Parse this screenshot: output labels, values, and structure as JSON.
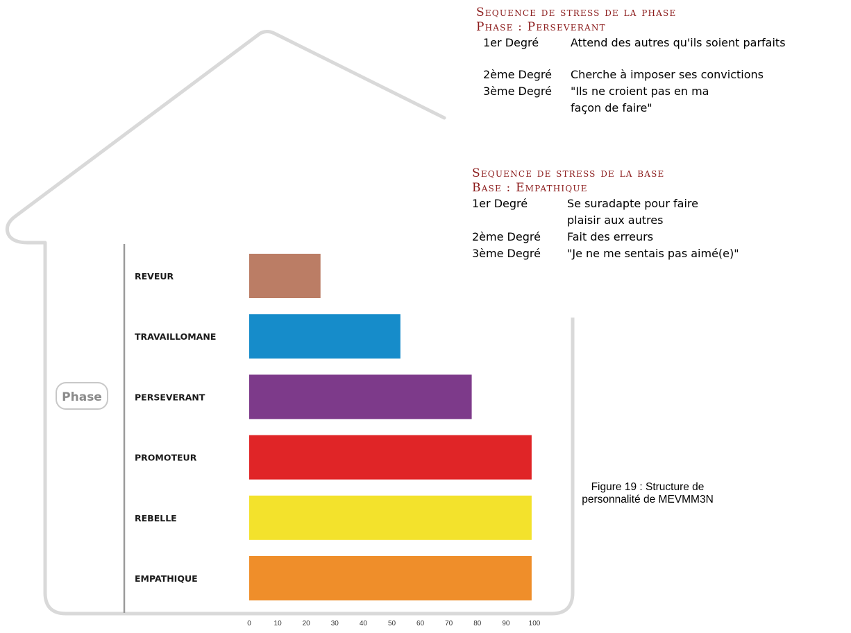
{
  "chart_data": {
    "type": "bar",
    "orientation": "horizontal",
    "categories": [
      "REVEUR",
      "TRAVAILLOMANE",
      "PERSEVERANT",
      "PROMOTEUR",
      "REBELLE",
      "EMPATHIQUE"
    ],
    "values": [
      25,
      53,
      78,
      99,
      99,
      99
    ],
    "colors": [
      "#bb7d65",
      "#168cca",
      "#7d3a8a",
      "#e02527",
      "#f3e22c",
      "#ef8e2a"
    ],
    "xlim": [
      0,
      100
    ],
    "xticks": [
      "0",
      "10",
      "20",
      "30",
      "40",
      "50",
      "60",
      "70",
      "80",
      "90",
      "100"
    ],
    "title": "",
    "xlabel": "",
    "ylabel": "",
    "grid": false
  },
  "badge": {
    "label": "Phase"
  },
  "stress_phase": {
    "title": "Sequence de stress de la phase",
    "subtitle": "Phase : Perseverant",
    "degrees": [
      {
        "label": "1er Degré",
        "text": "Attend des autres qu'ils soient parfaits"
      },
      {
        "label": "2ème Degré",
        "text": "Cherche à imposer ses convictions"
      },
      {
        "label": "3ème Degré",
        "text": "\"Ils ne croient pas en ma façon de faire\""
      }
    ]
  },
  "stress_base": {
    "title": "Sequence de stress de la base",
    "subtitle": "Base : Empathique",
    "degrees": [
      {
        "label": "1er Degré",
        "text": "Se suradapte pour faire plaisir aux autres"
      },
      {
        "label": "2ème Degré",
        "text": "Fait des erreurs"
      },
      {
        "label": "3ème Degré",
        "text": "\"Je ne me sentais pas aimé(e)\""
      }
    ]
  },
  "caption": "Figure 19 : Structure de personnalité de MEVMM3N"
}
